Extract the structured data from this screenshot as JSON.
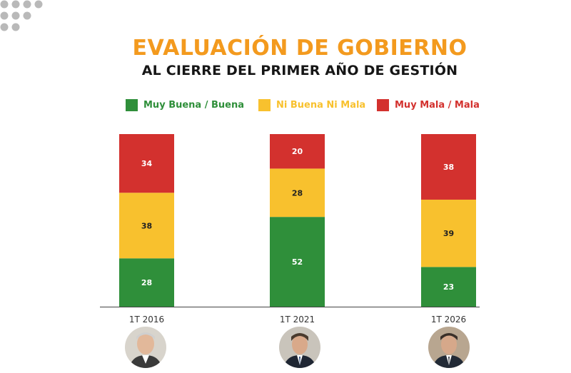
{
  "title": "EVALUACIÓN DE GOBIERNO",
  "subtitle": "AL CIERRE DEL PRIMER AÑO DE GESTIÓN",
  "colors": {
    "positive": "#2f8f3a",
    "neutral": "#f8c12e",
    "negative": "#d3312e",
    "title": "#f39a1e",
    "axis": "#444444",
    "dots": "#b9b9b9"
  },
  "chart_data": {
    "type": "bar",
    "stacked": true,
    "title": "EVALUACIÓN DE GOBIERNO",
    "subtitle": "AL CIERRE DEL PRIMER AÑO DE GESTIÓN",
    "categories": [
      "1T 2016",
      "1T 2021",
      "1T 2026"
    ],
    "series": [
      {
        "name": "Muy Buena / Buena",
        "color": "#2f8f3a",
        "values": [
          28,
          52,
          23
        ]
      },
      {
        "name": "Ni Buena Ni Mala",
        "color": "#f8c12e",
        "values": [
          38,
          28,
          39
        ]
      },
      {
        "name": "Muy Mala / Mala",
        "color": "#d3312e",
        "values": [
          34,
          20,
          38
        ]
      }
    ],
    "legend_position": "top",
    "ylim": [
      0,
      100
    ],
    "grid": false,
    "xlabel": "",
    "ylabel": ""
  },
  "avatars": [
    "president-2016-photo",
    "president-2021-photo",
    "president-2026-photo"
  ]
}
